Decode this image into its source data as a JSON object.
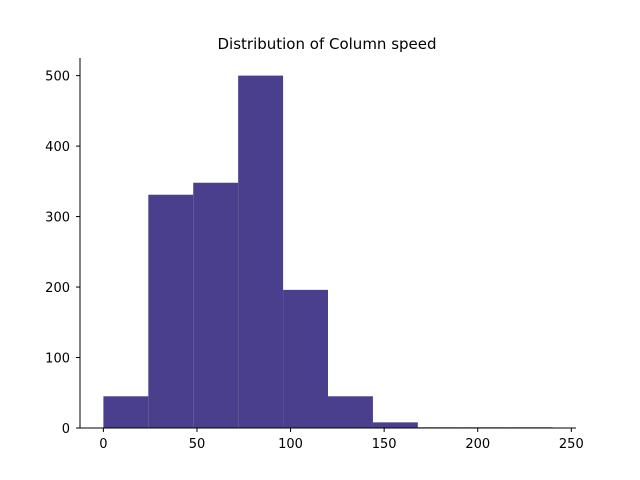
{
  "chart_data": {
    "type": "bar",
    "title": "Distribution of Column speed",
    "xlabel": "",
    "ylabel": "",
    "bins": [
      {
        "x0": 0,
        "x1": 24,
        "count": 45
      },
      {
        "x0": 24,
        "x1": 48,
        "count": 331
      },
      {
        "x0": 48,
        "x1": 72,
        "count": 348
      },
      {
        "x0": 72,
        "x1": 96,
        "count": 500
      },
      {
        "x0": 96,
        "x1": 120,
        "count": 196
      },
      {
        "x0": 120,
        "x1": 144,
        "count": 45
      },
      {
        "x0": 144,
        "x1": 168,
        "count": 8
      },
      {
        "x0": 168,
        "x1": 192,
        "count": 1
      },
      {
        "x0": 192,
        "x1": 216,
        "count": 1
      },
      {
        "x0": 216,
        "x1": 240,
        "count": 1
      }
    ],
    "xlim": [
      -12.5,
      252.5
    ],
    "ylim": [
      0,
      525
    ],
    "xticks": [
      0,
      50,
      100,
      150,
      200,
      250
    ],
    "xtick_labels": [
      "0",
      "50",
      "100",
      "150",
      "200",
      "250"
    ],
    "yticks": [
      0,
      100,
      200,
      300,
      400,
      500
    ],
    "ytick_labels": [
      "0",
      "100",
      "200",
      "300",
      "400",
      "500"
    ],
    "bar_color": "#4a3f8c",
    "grid": false,
    "legend": "none"
  }
}
